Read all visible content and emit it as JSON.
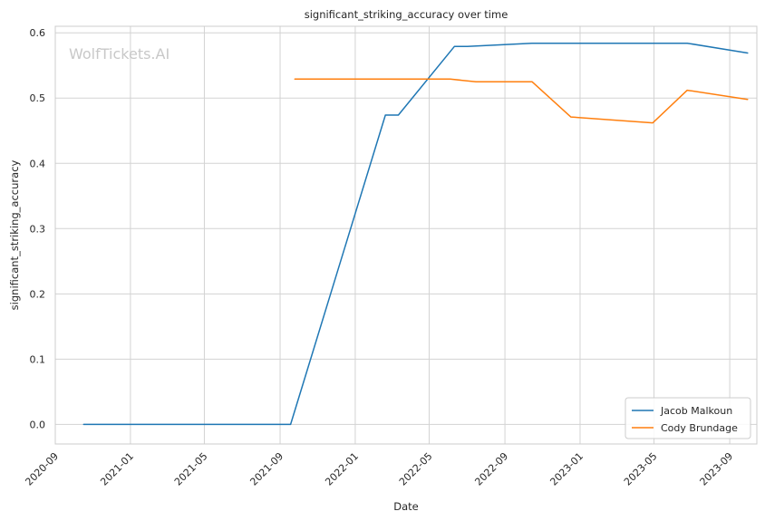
{
  "chart_data": {
    "type": "line",
    "title": "significant_striking_accuracy over time",
    "xlabel": "Date",
    "ylabel": "significant_striking_accuracy",
    "watermark": "WolfTickets.AI",
    "grid": true,
    "legend_position": "lower-right",
    "xlim": [
      "2020-09-01",
      "2023-10-15"
    ],
    "ylim": [
      -0.03,
      0.61
    ],
    "x_ticks": [
      "2020-09",
      "2021-01",
      "2021-05",
      "2021-09",
      "2022-01",
      "2022-05",
      "2022-09",
      "2023-01",
      "2023-05",
      "2023-09"
    ],
    "y_ticks": [
      0.0,
      0.1,
      0.2,
      0.3,
      0.4,
      0.5,
      0.6
    ],
    "y_tick_labels": [
      "0.0",
      "0.1",
      "0.2",
      "0.3",
      "0.4",
      "0.5",
      "0.6"
    ],
    "series": [
      {
        "name": "Jacob Malkoun",
        "color": "#1f77b4",
        "points": [
          {
            "x": "2020-10-17",
            "y": 0.0
          },
          {
            "x": "2021-09-18",
            "y": 0.0
          },
          {
            "x": "2022-02-19",
            "y": 0.474
          },
          {
            "x": "2022-03-12",
            "y": 0.474
          },
          {
            "x": "2022-06-11",
            "y": 0.579
          },
          {
            "x": "2022-07-02",
            "y": 0.579
          },
          {
            "x": "2022-10-15",
            "y": 0.584
          },
          {
            "x": "2023-06-24",
            "y": 0.584
          },
          {
            "x": "2023-09-30",
            "y": 0.569
          }
        ]
      },
      {
        "name": "Cody Brundage",
        "color": "#ff7f0e",
        "points": [
          {
            "x": "2021-09-25",
            "y": 0.529
          },
          {
            "x": "2022-06-04",
            "y": 0.529
          },
          {
            "x": "2022-07-16",
            "y": 0.525
          },
          {
            "x": "2022-10-15",
            "y": 0.525
          },
          {
            "x": "2022-12-17",
            "y": 0.471
          },
          {
            "x": "2023-04-29",
            "y": 0.462
          },
          {
            "x": "2023-06-24",
            "y": 0.512
          },
          {
            "x": "2023-09-30",
            "y": 0.498
          }
        ]
      }
    ]
  }
}
